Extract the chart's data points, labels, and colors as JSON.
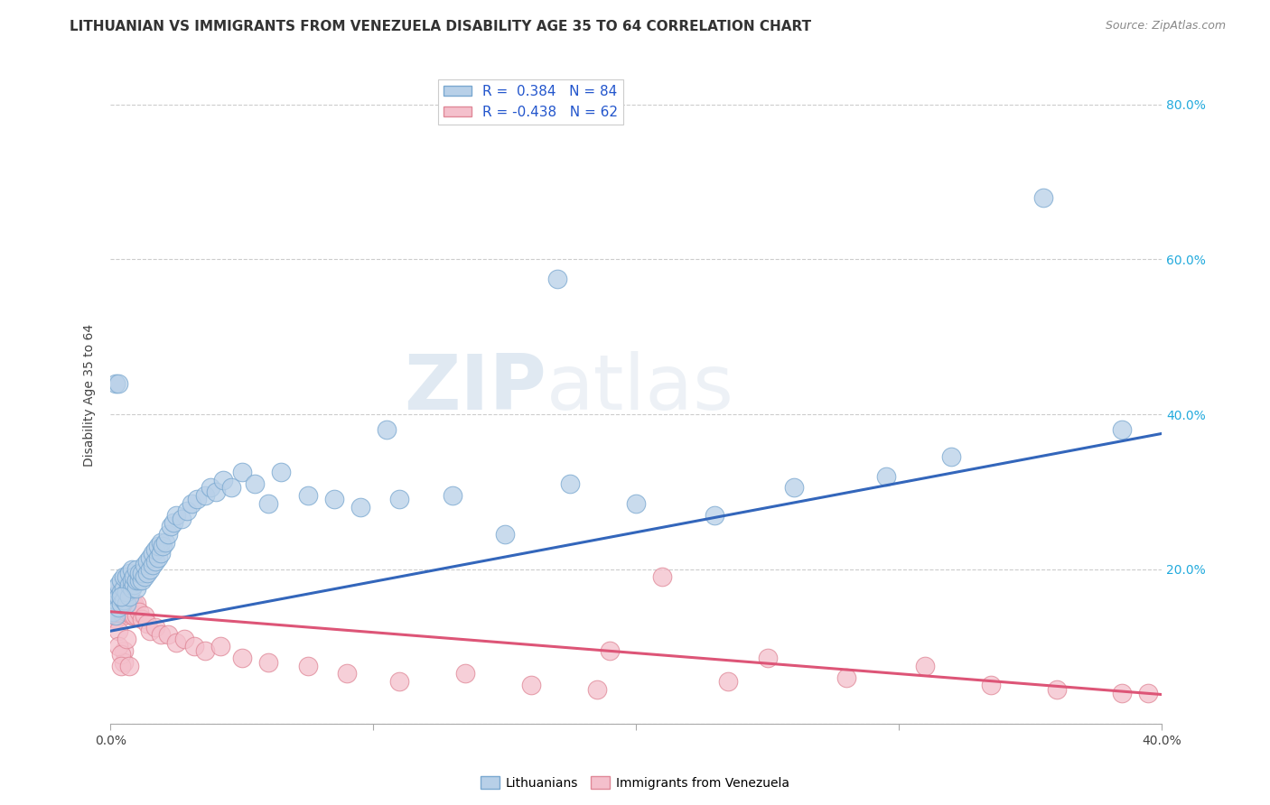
{
  "title": "LITHUANIAN VS IMMIGRANTS FROM VENEZUELA DISABILITY AGE 35 TO 64 CORRELATION CHART",
  "source": "Source: ZipAtlas.com",
  "ylabel": "Disability Age 35 to 64",
  "xlim": [
    0.0,
    0.42
  ],
  "ylim": [
    -0.02,
    0.87
  ],
  "plot_xlim": [
    0.0,
    0.4
  ],
  "plot_ylim": [
    0.0,
    0.85
  ],
  "xticks": [
    0.0,
    0.1,
    0.2,
    0.3,
    0.4
  ],
  "xtick_labels_show": [
    "0.0%",
    "",
    "",
    "",
    "40.0%"
  ],
  "yticks": [
    0.0,
    0.2,
    0.4,
    0.6,
    0.8
  ],
  "ytick_labels": [
    "",
    "20.0%",
    "40.0%",
    "60.0%",
    "80.0%"
  ],
  "legend_labels": [
    "Lithuanians",
    "Immigrants from Venezuela"
  ],
  "blue_color": "#b8d0e8",
  "blue_edge": "#7aa8d0",
  "blue_line": "#3366bb",
  "pink_color": "#f4c0cc",
  "pink_edge": "#e08898",
  "pink_line": "#dd5577",
  "R_blue": 0.384,
  "N_blue": 84,
  "R_pink": -0.438,
  "N_pink": 62,
  "title_fontsize": 11,
  "axis_label_fontsize": 10,
  "tick_fontsize": 10,
  "watermark_zip": "ZIP",
  "watermark_atlas": "atlas",
  "blue_line_start_y": 0.12,
  "blue_line_end_y": 0.375,
  "pink_line_start_y": 0.145,
  "pink_line_end_y": 0.038,
  "blue_x": [
    0.001,
    0.001,
    0.002,
    0.002,
    0.002,
    0.003,
    0.003,
    0.003,
    0.004,
    0.004,
    0.004,
    0.005,
    0.005,
    0.005,
    0.006,
    0.006,
    0.006,
    0.007,
    0.007,
    0.007,
    0.008,
    0.008,
    0.008,
    0.009,
    0.009,
    0.01,
    0.01,
    0.01,
    0.011,
    0.011,
    0.012,
    0.012,
    0.013,
    0.013,
    0.014,
    0.014,
    0.015,
    0.015,
    0.016,
    0.016,
    0.017,
    0.017,
    0.018,
    0.018,
    0.019,
    0.019,
    0.02,
    0.021,
    0.022,
    0.023,
    0.024,
    0.025,
    0.027,
    0.029,
    0.031,
    0.033,
    0.036,
    0.038,
    0.04,
    0.043,
    0.046,
    0.05,
    0.055,
    0.06,
    0.065,
    0.075,
    0.085,
    0.095,
    0.11,
    0.13,
    0.15,
    0.175,
    0.2,
    0.23,
    0.26,
    0.295,
    0.32,
    0.355,
    0.385,
    0.002,
    0.003,
    0.004,
    0.17,
    0.105
  ],
  "blue_y": [
    0.145,
    0.165,
    0.14,
    0.16,
    0.175,
    0.15,
    0.165,
    0.18,
    0.155,
    0.17,
    0.185,
    0.16,
    0.175,
    0.19,
    0.155,
    0.17,
    0.19,
    0.165,
    0.18,
    0.195,
    0.175,
    0.185,
    0.2,
    0.18,
    0.19,
    0.175,
    0.185,
    0.2,
    0.185,
    0.195,
    0.185,
    0.195,
    0.19,
    0.205,
    0.195,
    0.21,
    0.2,
    0.215,
    0.205,
    0.22,
    0.21,
    0.225,
    0.215,
    0.23,
    0.22,
    0.235,
    0.23,
    0.235,
    0.245,
    0.255,
    0.26,
    0.27,
    0.265,
    0.275,
    0.285,
    0.29,
    0.295,
    0.305,
    0.3,
    0.315,
    0.305,
    0.325,
    0.31,
    0.285,
    0.325,
    0.295,
    0.29,
    0.28,
    0.29,
    0.295,
    0.245,
    0.31,
    0.285,
    0.27,
    0.305,
    0.32,
    0.345,
    0.68,
    0.38,
    0.44,
    0.44,
    0.165,
    0.575,
    0.38
  ],
  "pink_x": [
    0.001,
    0.001,
    0.002,
    0.002,
    0.002,
    0.003,
    0.003,
    0.003,
    0.004,
    0.004,
    0.005,
    0.005,
    0.005,
    0.006,
    0.006,
    0.007,
    0.007,
    0.008,
    0.008,
    0.009,
    0.009,
    0.01,
    0.01,
    0.011,
    0.012,
    0.013,
    0.014,
    0.015,
    0.017,
    0.019,
    0.022,
    0.025,
    0.028,
    0.032,
    0.036,
    0.042,
    0.05,
    0.06,
    0.075,
    0.09,
    0.11,
    0.135,
    0.16,
    0.185,
    0.21,
    0.235,
    0.28,
    0.31,
    0.335,
    0.36,
    0.385,
    0.395,
    0.005,
    0.005,
    0.003,
    0.003,
    0.004,
    0.004,
    0.006,
    0.007,
    0.19,
    0.25
  ],
  "pink_y": [
    0.14,
    0.155,
    0.135,
    0.15,
    0.165,
    0.14,
    0.155,
    0.17,
    0.145,
    0.16,
    0.14,
    0.155,
    0.165,
    0.145,
    0.16,
    0.145,
    0.16,
    0.14,
    0.155,
    0.14,
    0.155,
    0.14,
    0.155,
    0.145,
    0.135,
    0.14,
    0.13,
    0.12,
    0.125,
    0.115,
    0.115,
    0.105,
    0.11,
    0.1,
    0.095,
    0.1,
    0.085,
    0.08,
    0.075,
    0.065,
    0.055,
    0.065,
    0.05,
    0.045,
    0.19,
    0.055,
    0.06,
    0.075,
    0.05,
    0.045,
    0.04,
    0.04,
    0.095,
    0.08,
    0.12,
    0.1,
    0.09,
    0.075,
    0.11,
    0.075,
    0.095,
    0.085
  ]
}
